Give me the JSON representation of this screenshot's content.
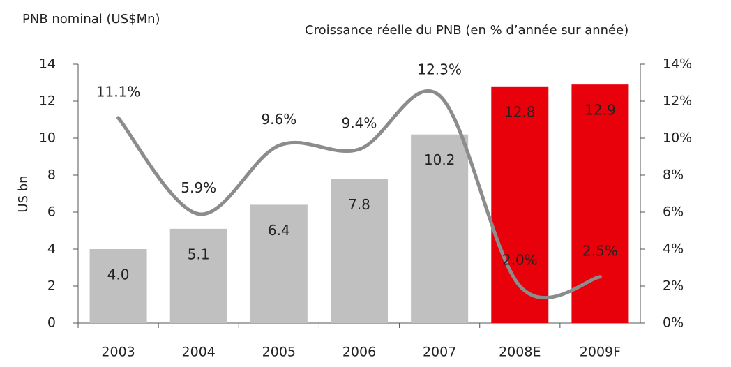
{
  "chart_data": {
    "type": "bar+line",
    "title_left": "PNB nominal (US$Mn)",
    "title_right": "Croissance réelle du PNB (en % d’année sur année)",
    "ylabel": "US bn",
    "categories": [
      "2003",
      "2004",
      "2005",
      "2006",
      "2007",
      "2008E",
      "2009F"
    ],
    "series": [
      {
        "name": "PNB nominal",
        "type": "bar",
        "colors": [
          "#c0c0c0",
          "#c0c0c0",
          "#c0c0c0",
          "#c0c0c0",
          "#c0c0c0",
          "#e8000b",
          "#e8000b"
        ],
        "values": [
          4.0,
          5.1,
          6.4,
          7.8,
          10.2,
          12.8,
          12.9
        ],
        "value_labels": [
          "4.0",
          "5.1",
          "6.4",
          "7.8",
          "10.2",
          "12.8",
          "12.9"
        ]
      },
      {
        "name": "Croissance réelle du PNB",
        "type": "line",
        "axis": "y2",
        "color": "#8c8c8c",
        "values": [
          11.1,
          5.9,
          9.6,
          9.4,
          12.3,
          2.0,
          2.5
        ],
        "value_labels": [
          "11.1%",
          "5.9%",
          "9.6%",
          "9.4%",
          "12.3%",
          "2.0%",
          "2.5%"
        ]
      }
    ],
    "ylim": [
      0,
      14
    ],
    "yticks": [
      0,
      2,
      4,
      6,
      8,
      10,
      12,
      14
    ],
    "y2lim": [
      0,
      14
    ],
    "y2ticks": [
      {
        "value": 0,
        "label": "0%"
      },
      {
        "value": 2,
        "label": "2%"
      },
      {
        "value": 4,
        "label": "4%"
      },
      {
        "value": 6,
        "label": "6%"
      },
      {
        "value": 8,
        "label": "8%"
      },
      {
        "value": 10,
        "label": "10%"
      },
      {
        "value": 12,
        "label": "12%"
      },
      {
        "value": 14,
        "label": "14%"
      }
    ]
  }
}
